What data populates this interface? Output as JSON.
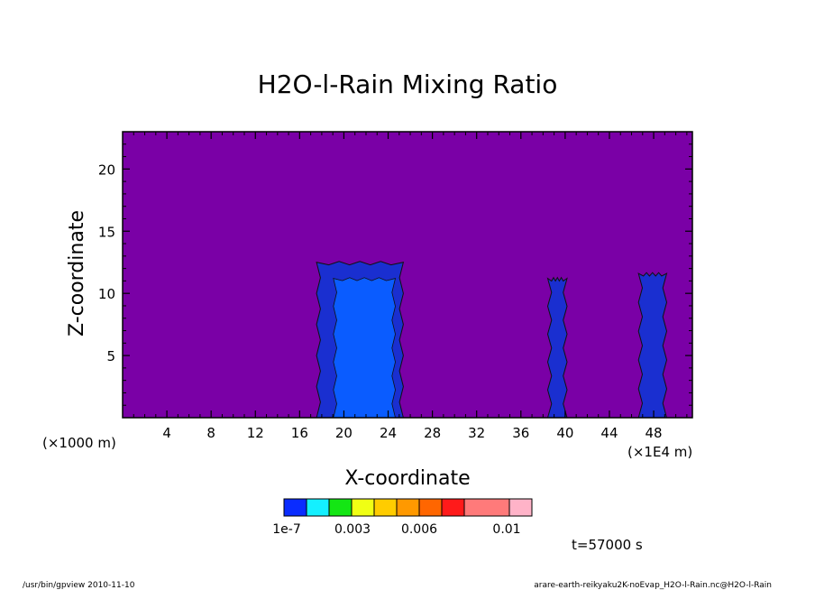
{
  "chart_data": {
    "type": "heatmap",
    "title": "H2O-l-Rain Mixing Ratio",
    "xlabel": "X-coordinate",
    "ylabel": "Z-coordinate",
    "x_unit_left": "(×1000 m)",
    "x_unit_right": "(×1E4 m)",
    "xlim": [
      0,
      51.5
    ],
    "ylim": [
      0,
      23
    ],
    "x_ticks": [
      4,
      8,
      12,
      16,
      20,
      24,
      28,
      32,
      36,
      40,
      44,
      48
    ],
    "y_ticks": [
      5,
      10,
      15,
      20
    ],
    "background_color": "#7a00a6",
    "colorbar": {
      "colors": [
        "#0a2cff",
        "#14f0ff",
        "#14e614",
        "#f0ff14",
        "#ffcc00",
        "#ff9900",
        "#ff6600",
        "#ff1a1a",
        "#ff7a7a",
        "#ffb3c8"
      ],
      "labels": [
        "1e-7",
        "0.003",
        "0.006",
        "0.01"
      ]
    },
    "time_label": "t=57000 s",
    "rain_columns": [
      {
        "x_left": 17.7,
        "x_right": 25.2,
        "top": 12.5,
        "core_left": 19.2,
        "core_right": 24.5,
        "core_top": 11.2
      },
      {
        "x_left": 38.6,
        "x_right": 40.0,
        "top": 11.2
      },
      {
        "x_left": 46.8,
        "x_right": 49.0,
        "top": 11.6
      }
    ]
  },
  "footer": {
    "left": "/usr/bin/gpview  2010-11-10",
    "right": "arare-earth-reikyaku2K-noEvap_H2O-l-Rain.nc@H2O-l-Rain"
  }
}
